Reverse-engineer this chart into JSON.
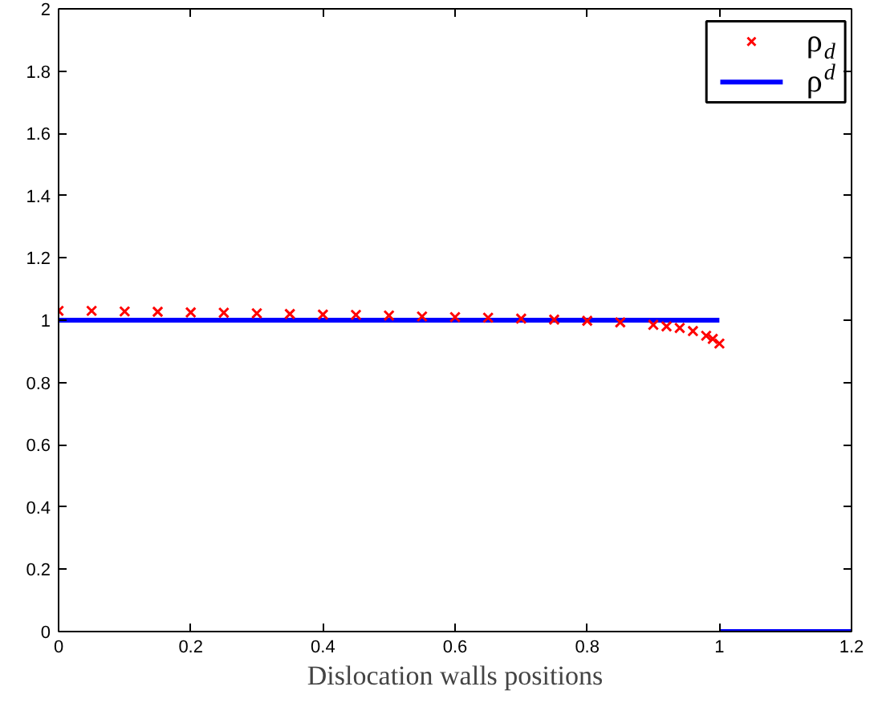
{
  "chart_data": {
    "type": "line",
    "xlabel": "Dislocation walls positions",
    "xlim": [
      0,
      1.2
    ],
    "ylim": [
      0,
      2
    ],
    "xticks": [
      0,
      0.2,
      0.4,
      0.6,
      0.8,
      1,
      1.2
    ],
    "yticks": [
      0,
      0.2,
      0.4,
      0.6,
      0.8,
      1,
      1.2,
      1.4,
      1.6,
      1.8,
      2
    ],
    "grid": false,
    "legend": "top right",
    "series": [
      {
        "name": "ρ$_{d}$",
        "type": "scatter",
        "marker": "cross",
        "color": "#ff0000",
        "x": [
          0,
          0.05,
          0.1,
          0.15,
          0.2,
          0.25,
          0.3,
          0.35,
          0.4,
          0.45,
          0.5,
          0.55,
          0.6,
          0.65,
          0.7,
          0.75,
          0.8,
          0.85,
          0.9,
          0.92,
          0.94,
          0.96,
          0.98,
          0.99,
          1.0
        ],
        "values": [
          1.03,
          1.03,
          1.028,
          1.027,
          1.025,
          1.024,
          1.022,
          1.02,
          1.018,
          1.017,
          1.015,
          1.012,
          1.01,
          1.008,
          1.005,
          1.002,
          0.998,
          0.993,
          0.985,
          0.98,
          0.975,
          0.965,
          0.95,
          0.94,
          0.925
        ]
      },
      {
        "name": "ρ$^{d}$",
        "marker": "none",
        "line_style": "solid",
        "color": "#0000ff",
        "x": [
          0,
          1
        ],
        "values": [
          1,
          1
        ]
      },
      {
        "marker": "none",
        "line_style": "solid",
        "color": "#0000ff",
        "x": [
          1,
          1.2
        ],
        "values": [
          0,
          0
        ]
      }
    ]
  }
}
